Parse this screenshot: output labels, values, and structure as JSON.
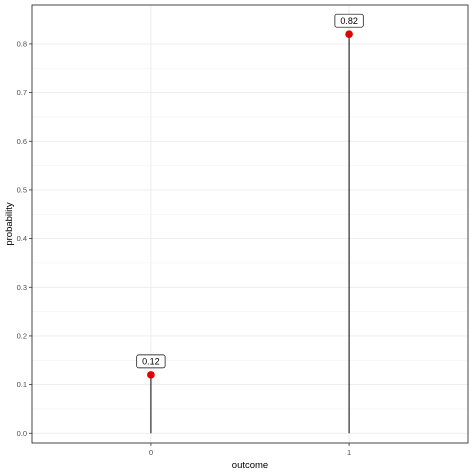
{
  "chart_data": {
    "type": "lollipop",
    "title": "",
    "xlabel": "outcome",
    "ylabel": "probability",
    "categories": [
      "0",
      "1"
    ],
    "values": [
      0.12,
      0.82
    ],
    "labels": [
      "0.12",
      "0.82"
    ],
    "ylim": [
      -0.02,
      0.88
    ],
    "yticks": [
      0.0,
      0.1,
      0.2,
      0.3,
      0.4,
      0.5,
      0.6,
      0.7,
      0.8
    ],
    "ytick_labels": [
      "0.0",
      "0.1",
      "0.2",
      "0.3",
      "0.4",
      "0.5",
      "0.6",
      "0.7",
      "0.8"
    ],
    "grid": true,
    "legend": "none",
    "colors": {
      "point": "#e00000",
      "stem": "#000000",
      "panel_border": "#333333",
      "grid": "#ebebeb"
    }
  }
}
